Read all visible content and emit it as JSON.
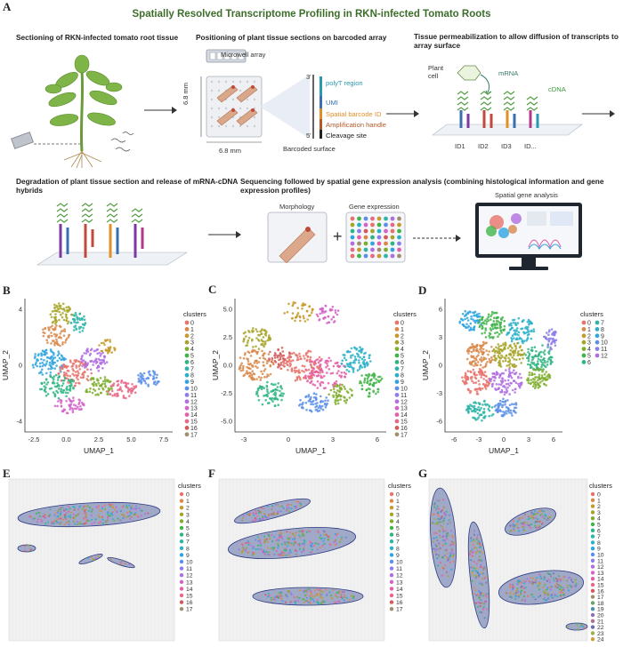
{
  "panel_letters": {
    "a": "A",
    "b": "B",
    "c": "C",
    "d": "D",
    "e": "E",
    "f": "F",
    "g": "G"
  },
  "title": "Spatially Resolved Transcriptome Profiling in RKN-infected Tomato Roots",
  "steps": {
    "s1": "Sectioning of RKN-infected tomato root tissue",
    "s2": "Positioning of plant tissue sections on barcoded array",
    "s3": "Tissue permeabilization to allow diffusion of transcripts to array surface",
    "s4": "Degradation of plant tissue section and release of mRNA-cDNA hybrids",
    "s5": "Sequencing followed by spatial gene expression analysis (combining histological information and gene expression profiles)"
  },
  "array": {
    "microwell": "Microwell array",
    "dim_v": "6.8 mm",
    "dim_h": "6.8 mm",
    "barcoded_surface": "Barcoded surface",
    "end3": "3'",
    "end5": "5'",
    "regions": [
      {
        "label": "polyT region",
        "color": "#2a9ab0"
      },
      {
        "label": "UMI",
        "color": "#3a6fb0"
      },
      {
        "label": "Spatial barcode ID",
        "color": "#e0902a"
      },
      {
        "label": "Amplification handle",
        "color": "#b05a2a"
      },
      {
        "label": "Cleavage site",
        "color": "#222222"
      }
    ]
  },
  "permeab": {
    "plant_cell": "Plant\ncell",
    "plant_cell_1": "Plant",
    "plant_cell_2": "cell",
    "mrna": "mRNA",
    "cdna": "cDNA",
    "ids": [
      "ID1",
      "ID2",
      "ID3",
      "ID..."
    ]
  },
  "seq": {
    "morphology": "Morphology",
    "gene_expression": "Gene expression",
    "plus": "+",
    "spatial_gene_analysis": "Spatial gene analysis"
  },
  "umap_panels": [
    {
      "xlabel": "UMAP_1",
      "ylabel": "UMAP_2",
      "xticks": [
        "-2.5",
        "0.0",
        "2.5",
        "5.0",
        "7.5"
      ],
      "yticks": [
        "4",
        "0",
        "-4"
      ],
      "legend_title": "clusters",
      "clusters": [
        "0",
        "1",
        "2",
        "3",
        "4",
        "5",
        "6",
        "7",
        "8",
        "9",
        "10",
        "11",
        "12",
        "13",
        "14",
        "15",
        "16",
        "17"
      ]
    },
    {
      "xlabel": "UMAP_1",
      "ylabel": "UMAP_2",
      "xticks": [
        "-3",
        "0",
        "3",
        "6"
      ],
      "yticks": [
        "5.0",
        "2.5",
        "0.0",
        "-2.5",
        "-5.0"
      ],
      "legend_title": "clusters",
      "clusters": [
        "0",
        "1",
        "2",
        "3",
        "4",
        "5",
        "6",
        "7",
        "8",
        "9",
        "10",
        "11",
        "12",
        "13",
        "14",
        "15",
        "16",
        "17"
      ]
    },
    {
      "xlabel": "UMAP_1",
      "ylabel": "UMAP_2",
      "xticks": [
        "-6",
        "-3",
        "0",
        "3",
        "6"
      ],
      "yticks": [
        "6",
        "3",
        "0",
        "-3",
        "-6"
      ],
      "legend_title": "clusters",
      "clusters": [
        "0",
        "1",
        "2",
        "3",
        "4",
        "5",
        "6",
        "7",
        "8",
        "9",
        "10",
        "11",
        "12"
      ]
    }
  ],
  "spatial_panels": [
    {
      "legend_title": "clusters",
      "clusters": [
        "0",
        "1",
        "2",
        "3",
        "4",
        "5",
        "6",
        "7",
        "8",
        "9",
        "10",
        "11",
        "12",
        "13",
        "14",
        "15",
        "16",
        "17"
      ]
    },
    {
      "legend_title": "clusters",
      "clusters": [
        "0",
        "1",
        "2",
        "3",
        "4",
        "5",
        "6",
        "7",
        "8",
        "9",
        "10",
        "11",
        "12",
        "13",
        "14",
        "15",
        "16",
        "17"
      ]
    },
    {
      "legend_title": "clusters",
      "clusters": [
        "0",
        "1",
        "2",
        "3",
        "4",
        "5",
        "6",
        "7",
        "8",
        "9",
        "10",
        "11",
        "12",
        "13",
        "14",
        "15",
        "16",
        "17",
        "18",
        "19",
        "20",
        "21",
        "22",
        "23",
        "24"
      ]
    }
  ],
  "palette": [
    "#e8736c",
    "#d9884a",
    "#c59a2e",
    "#a8a42a",
    "#7fae2e",
    "#43b44a",
    "#2fb582",
    "#2fb4a8",
    "#2cb0c8",
    "#2fa4e0",
    "#5b8fe8",
    "#8a7ee8",
    "#b06ee0",
    "#d263c8",
    "#e35fa8",
    "#e86888",
    "#d45a5a",
    "#a08f6f",
    "#6f9f6f",
    "#4f8faf",
    "#8f6faf",
    "#af6f8f",
    "#6f6faf",
    "#9fae4f",
    "#cf9f3f"
  ]
}
